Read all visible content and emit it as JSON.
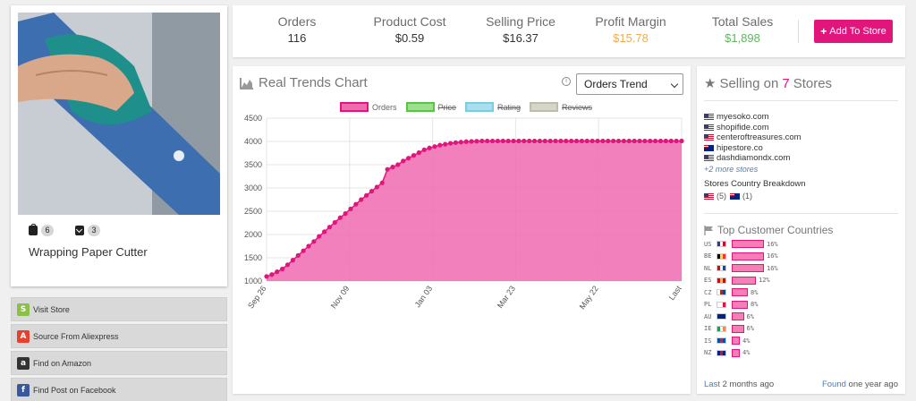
{
  "product": {
    "title": "Wrapping Paper Cutter",
    "badges": [
      {
        "icon": "shopify-bag-icon",
        "count": "6"
      },
      {
        "icon": "mail-icon",
        "count": "3"
      }
    ]
  },
  "actions": [
    {
      "label": "Visit Store",
      "icon": "shopify-icon",
      "glyph": "S"
    },
    {
      "label": "Source From Aliexpress",
      "icon": "aliexpress-icon",
      "glyph": "A"
    },
    {
      "label": "Find on Amazon",
      "icon": "amazon-icon",
      "glyph": "a"
    },
    {
      "label": "Find Post on Facebook",
      "icon": "facebook-icon",
      "glyph": "f"
    }
  ],
  "stats": [
    {
      "label": "Orders",
      "value": "116",
      "color": "#333333"
    },
    {
      "label": "Product Cost",
      "value": "$0.59",
      "color": "#333333"
    },
    {
      "label": "Selling Price",
      "value": "$16.37",
      "color": "#333333"
    },
    {
      "label": "Profit Margin",
      "value": "$15.78",
      "color": "#f0ad4e"
    },
    {
      "label": "Total Sales",
      "value": "$1,898",
      "color": "#5cb85c"
    }
  ],
  "add_button": "Add To Store",
  "trends": {
    "title": "Real Trends Chart",
    "select_value": "Orders Trend",
    "legend": [
      {
        "label": "Orders",
        "fill": "#f06ab0",
        "border": "#e2157c",
        "active": true
      },
      {
        "label": "Price",
        "fill": "#9be08a",
        "border": "#5cc24a",
        "active": false
      },
      {
        "label": "Rating",
        "fill": "#a8dfec",
        "border": "#7ccbe0",
        "active": false
      },
      {
        "label": "Reviews",
        "fill": "#d5d5c8",
        "border": "#bdbdae",
        "active": false
      }
    ]
  },
  "chart_data": {
    "type": "area",
    "series": [
      {
        "name": "Orders",
        "values": [
          1100,
          1140,
          1200,
          1260,
          1350,
          1450,
          1550,
          1650,
          1750,
          1850,
          1960,
          2060,
          2160,
          2260,
          2360,
          2450,
          2550,
          2650,
          2750,
          2840,
          2930,
          3020,
          3110,
          3400,
          3450,
          3500,
          3580,
          3640,
          3700,
          3760,
          3820,
          3860,
          3890,
          3920,
          3940,
          3960,
          3975,
          3985,
          3995,
          4000,
          4005,
          4010,
          4010,
          4010,
          4010,
          4010,
          4010,
          4010,
          4010,
          4010,
          4010,
          4010,
          4010,
          4010,
          4010,
          4010,
          4010,
          4010,
          4010,
          4010,
          4010,
          4010,
          4010,
          4010,
          4010,
          4010,
          4010,
          4010,
          4010,
          4010,
          4010,
          4010,
          4010,
          4010,
          4010,
          4010,
          4010,
          4010,
          4010,
          4010
        ]
      }
    ],
    "x_ticks": [
      "Sep 26",
      "Nov 09",
      "Jan 03",
      "Mar 23",
      "May 22",
      "Last"
    ],
    "y_ticks": [
      1000,
      1500,
      2000,
      2500,
      3000,
      3500,
      4000,
      4500
    ],
    "ylim": [
      1000,
      4500
    ],
    "grid": true,
    "fill_color": "#f06ab0",
    "line_color": "#e2157c"
  },
  "stores": {
    "title_prefix": "Selling on",
    "count": "7",
    "title_suffix": "Stores",
    "list": [
      {
        "name": "myesoko.com",
        "flag": "us"
      },
      {
        "name": "shopifide.com",
        "flag": "us"
      },
      {
        "name": "centeroftreasures.com",
        "flag": "us"
      },
      {
        "name": "hipestore.co",
        "flag": "au"
      },
      {
        "name": "dashdiamondx.com",
        "flag": "us"
      }
    ],
    "more": "+2 more stores",
    "breakdown_label": "Stores Country Breakdown",
    "breakdown": [
      {
        "flag": "us",
        "count": "(5)"
      },
      {
        "flag": "au",
        "count": "(1)"
      }
    ]
  },
  "countries": {
    "title": "Top Customer Countries",
    "list": [
      {
        "code": "US",
        "pct": "16%",
        "value": 16,
        "flag": [
          "#3c3b6e",
          "#ffffff",
          "#c8102e"
        ]
      },
      {
        "code": "BE",
        "pct": "16%",
        "value": 16,
        "flag": [
          "#000000",
          "#fdda24",
          "#ef3340"
        ]
      },
      {
        "code": "NL",
        "pct": "16%",
        "value": 16,
        "flag": [
          "#ae1c28",
          "#ffffff",
          "#21468b"
        ]
      },
      {
        "code": "ES",
        "pct": "12%",
        "value": 12,
        "flag": [
          "#c60b1e",
          "#ffc400",
          "#c60b1e"
        ]
      },
      {
        "code": "CZ",
        "pct": "8%",
        "value": 8,
        "flag": [
          "#ffffff",
          "#d7141a",
          "#11457e"
        ]
      },
      {
        "code": "PL",
        "pct": "8%",
        "value": 8,
        "flag": [
          "#ffffff",
          "#ffffff",
          "#dc143c"
        ]
      },
      {
        "code": "AU",
        "pct": "6%",
        "value": 6,
        "flag": [
          "#00247d",
          "#00247d",
          "#00247d"
        ]
      },
      {
        "code": "IE",
        "pct": "6%",
        "value": 6,
        "flag": [
          "#169b62",
          "#ffffff",
          "#ff883e"
        ]
      },
      {
        "code": "IS",
        "pct": "4%",
        "value": 4,
        "flag": [
          "#02529c",
          "#dc1e35",
          "#02529c"
        ]
      },
      {
        "code": "NZ",
        "pct": "4%",
        "value": 4,
        "flag": [
          "#00247d",
          "#cc142b",
          "#00247d"
        ]
      }
    ]
  },
  "footer": {
    "last_label": "Last",
    "last_value": "2 months ago",
    "found_label": "Found",
    "found_value": "one year ago"
  }
}
